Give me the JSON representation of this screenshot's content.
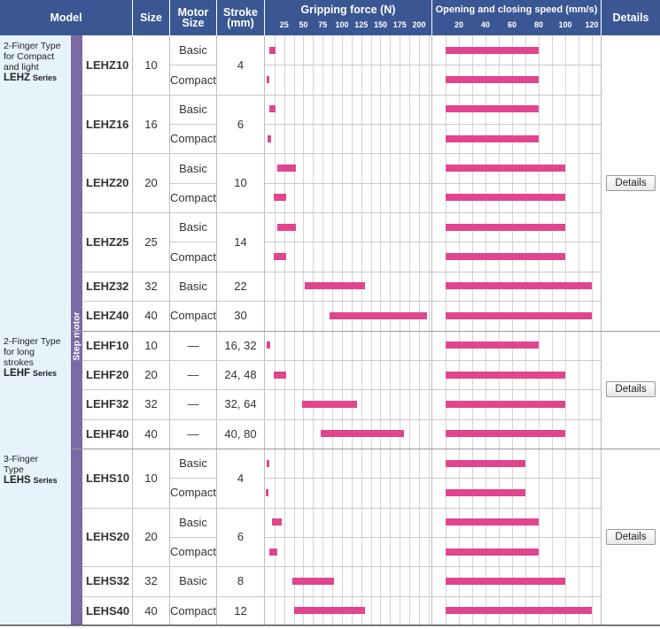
{
  "headers": {
    "model": "Model",
    "size": "Size",
    "motor_size": "Motor Size",
    "stroke": "Stroke (mm)",
    "force": "Gripping force (N)",
    "speed": "Opening and closing speed (mm/s)",
    "details": "Details"
  },
  "force_ticks": [
    "25",
    "50",
    "75",
    "100",
    "125",
    "150",
    "175",
    "200"
  ],
  "speed_ticks": [
    "20",
    "40",
    "60",
    "80",
    "100",
    "120"
  ],
  "strip_label": "Step motor",
  "series": [
    {
      "line1": "2-Finger Type",
      "line2": "for Compact",
      "line3": "and light",
      "name": "LEHZ",
      "suffix": "Series",
      "details": "Details",
      "models": [
        {
          "model": "LEHZ10",
          "size": "10",
          "stroke": "4",
          "variants": [
            {
              "motor": "Basic",
              "force": [
                6,
                14
              ],
              "speed": [
                10,
                80
              ]
            },
            {
              "motor": "Compact",
              "force": [
                2,
                6
              ],
              "speed": [
                10,
                80
              ]
            }
          ]
        },
        {
          "model": "LEHZ16",
          "size": "16",
          "stroke": "6",
          "variants": [
            {
              "motor": "Basic",
              "force": [
                6,
                14
              ],
              "speed": [
                10,
                80
              ]
            },
            {
              "motor": "Compact",
              "force": [
                3,
                8
              ],
              "speed": [
                10,
                80
              ]
            }
          ]
        },
        {
          "model": "LEHZ20",
          "size": "20",
          "stroke": "10",
          "variants": [
            {
              "motor": "Basic",
              "force": [
                16,
                40
              ],
              "speed": [
                10,
                100
              ]
            },
            {
              "motor": "Compact",
              "force": [
                11,
                28
              ],
              "speed": [
                10,
                100
              ]
            }
          ]
        },
        {
          "model": "LEHZ25",
          "size": "25",
          "stroke": "14",
          "variants": [
            {
              "motor": "Basic",
              "force": [
                16,
                40
              ],
              "speed": [
                10,
                100
              ]
            },
            {
              "motor": "Compact",
              "force": [
                11,
                28
              ],
              "speed": [
                10,
                100
              ]
            }
          ]
        },
        {
          "model": "LEHZ32",
          "size": "32",
          "stroke": "22",
          "variants": [
            {
              "motor": "Basic",
              "force": [
                52,
                130
              ],
              "speed": [
                10,
                120
              ]
            }
          ]
        },
        {
          "model": "LEHZ40",
          "size": "40",
          "stroke": "30",
          "variants": [
            {
              "motor": "Compact",
              "force": [
                84,
                210
              ],
              "speed": [
                10,
                120
              ]
            }
          ]
        }
      ]
    },
    {
      "line1": "2-Finger Type",
      "line2": "for long",
      "line3": "strokes",
      "name": "LEHF",
      "suffix": "Series",
      "details": "Details",
      "models": [
        {
          "model": "LEHF10",
          "size": "10",
          "stroke": "16, 32",
          "variants": [
            {
              "motor": "—",
              "force": [
                2,
                7
              ],
              "speed": [
                10,
                80
              ]
            }
          ]
        },
        {
          "model": "LEHF20",
          "size": "20",
          "stroke": "24, 48",
          "variants": [
            {
              "motor": "—",
              "force": [
                11,
                28
              ],
              "speed": [
                10,
                100
              ]
            }
          ]
        },
        {
          "model": "LEHF32",
          "size": "32",
          "stroke": "32, 64",
          "variants": [
            {
              "motor": "—",
              "force": [
                48,
                120
              ],
              "speed": [
                10,
                100
              ]
            }
          ]
        },
        {
          "model": "LEHF40",
          "size": "40",
          "stroke": "40, 80",
          "variants": [
            {
              "motor": "—",
              "force": [
                72,
                180
              ],
              "speed": [
                10,
                100
              ]
            }
          ]
        }
      ]
    },
    {
      "line1": "3-Finger",
      "line2": "Type",
      "line3": "",
      "name": "LEHS",
      "suffix": "Series",
      "details": "Details",
      "models": [
        {
          "model": "LEHS10",
          "size": "10",
          "stroke": "4",
          "variants": [
            {
              "motor": "Basic",
              "force": [
                2,
                5.5
              ],
              "speed": [
                10,
                70
              ]
            },
            {
              "motor": "Compact",
              "force": [
                1,
                3
              ],
              "speed": [
                10,
                70
              ]
            }
          ]
        },
        {
          "model": "LEHS20",
          "size": "20",
          "stroke": "6",
          "variants": [
            {
              "motor": "Basic",
              "force": [
                9,
                22
              ],
              "speed": [
                10,
                80
              ]
            },
            {
              "motor": "Compact",
              "force": [
                6,
                16
              ],
              "speed": [
                10,
                80
              ]
            }
          ]
        },
        {
          "model": "LEHS32",
          "size": "32",
          "stroke": "8",
          "variants": [
            {
              "motor": "Basic",
              "force": [
                36,
                90
              ],
              "speed": [
                10,
                100
              ]
            }
          ]
        },
        {
          "model": "LEHS40",
          "size": "40",
          "stroke": "12",
          "variants": [
            {
              "motor": "Compact",
              "force": [
                38,
                130
              ],
              "speed": [
                10,
                120
              ]
            }
          ]
        }
      ]
    }
  ]
}
